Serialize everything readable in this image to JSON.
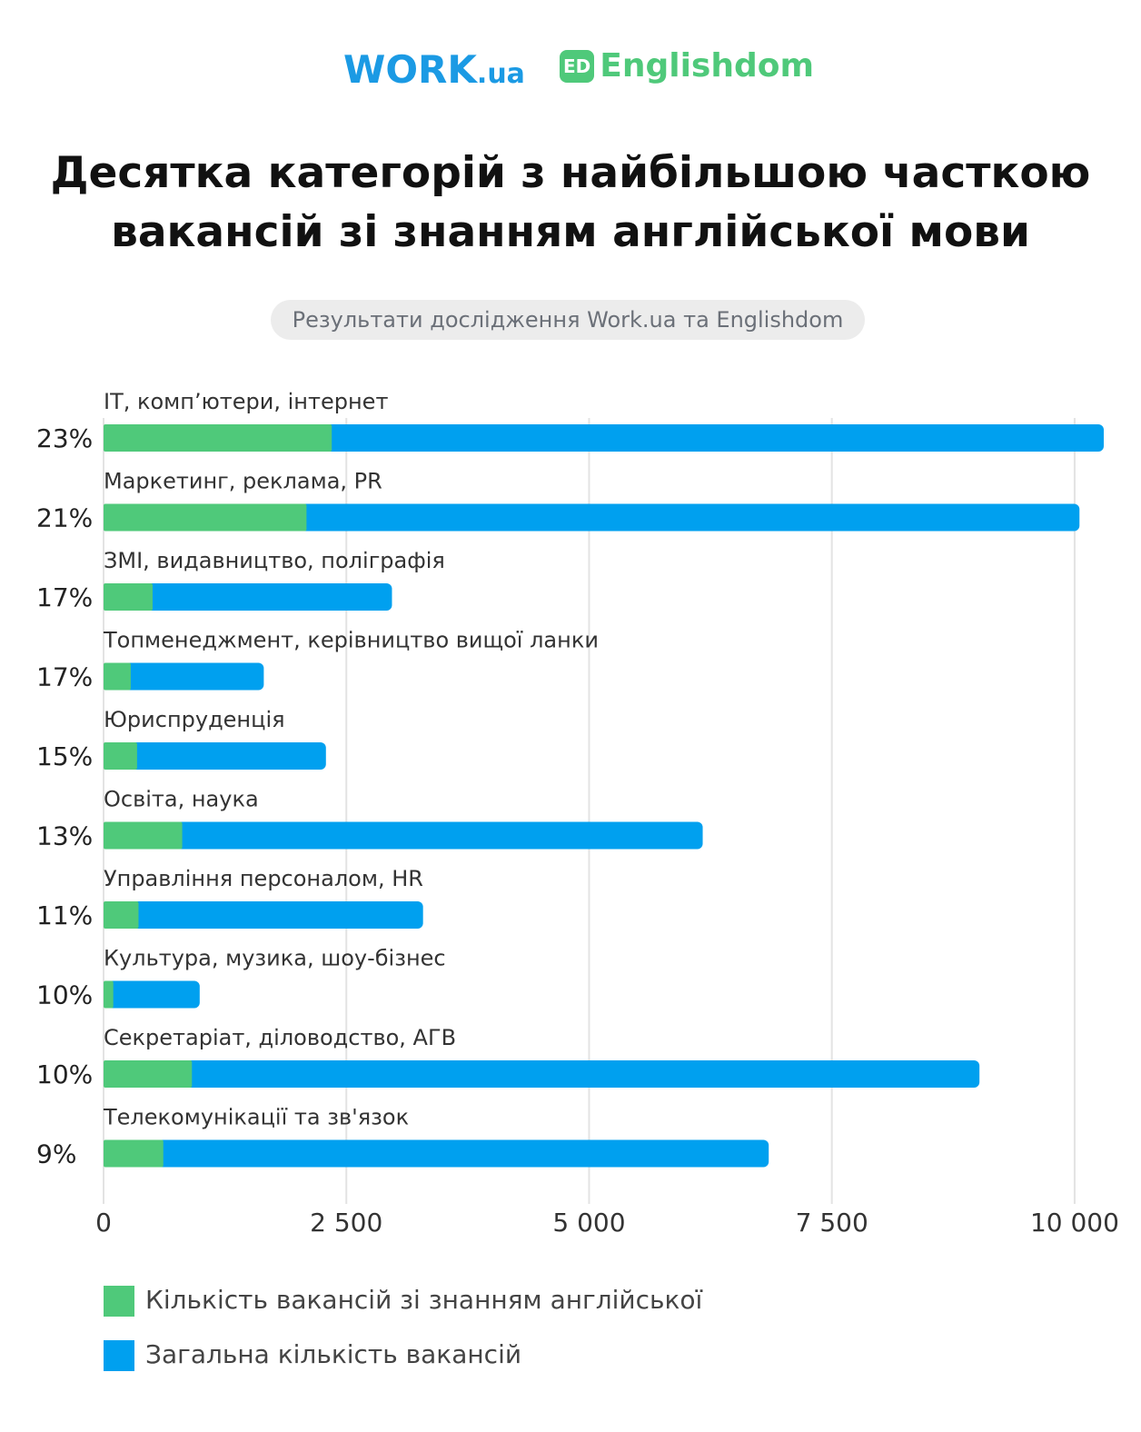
{
  "logos": {
    "work": "WORK",
    "work_suffix": ".ua",
    "ed_badge": "ED",
    "englishdom": "Englishdom"
  },
  "chart_data": {
    "type": "overlay-bar",
    "title": "Десятка категорій з найбільшою часткою вакансій зі знанням англійської мови",
    "subtitle": "Результати дослідження Work.ua та Englishdom",
    "categories": [
      "IT, комп’ютери, інтернет",
      "Маркетинг, реклама, PR",
      "ЗМІ, видавництво, поліграфія",
      "Топменеджмент, керівництво вищої ланки",
      "Юриспруденція",
      "Освіта, наука",
      "Управління персоналом, HR",
      "Культура, музика, шоу-бізнес",
      "Секретаріат, діловодство, АГВ",
      "Телекомунікації та зв'язок"
    ],
    "share_labels": [
      "23%",
      "21%",
      "17%",
      "17%",
      "15%",
      "13%",
      "11%",
      "10%",
      "10%",
      "9%"
    ],
    "series": [
      {
        "name": "Кількість вакансій зі знанням англійської",
        "color": "#4fc97a",
        "values": [
          2350,
          2090,
          505,
          280,
          345,
          810,
          360,
          100,
          910,
          615
        ]
      },
      {
        "name": "Загальна кількість вакансій",
        "color": "#00a0ef",
        "values": [
          10300,
          10050,
          2970,
          1650,
          2290,
          6170,
          3290,
          990,
          9020,
          6850
        ]
      }
    ],
    "xlim": [
      0,
      10300
    ],
    "xticks": [
      0,
      {
        "value": 2500,
        "label": "2 500"
      },
      {
        "value": 5000,
        "label": "5 000"
      },
      {
        "value": 7500,
        "label": "7 500"
      },
      {
        "value": 10000,
        "label": "10 000"
      }
    ],
    "grid": true
  }
}
